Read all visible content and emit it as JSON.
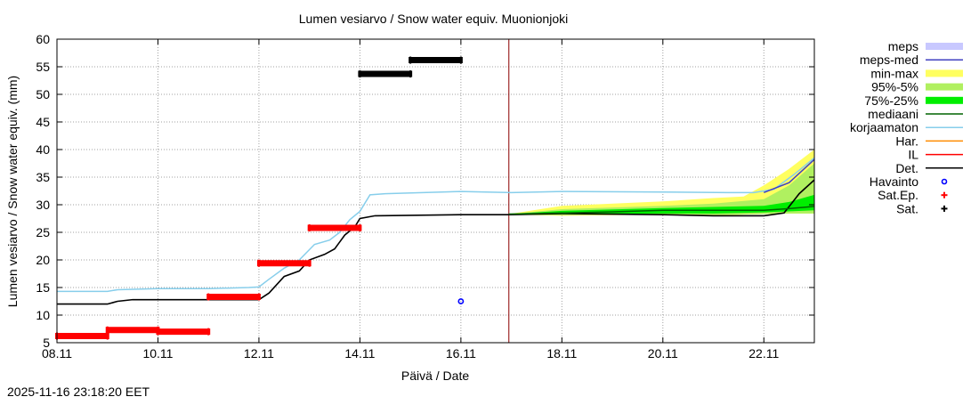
{
  "chart_data": {
    "type": "line",
    "title": "Lumen vesiarvo / Snow water equiv.  Muonionjoki",
    "xlabel": "Päivä / Date",
    "ylabel": "Lumen vesiarvo / Snow water equiv. (mm)",
    "ylim": [
      5,
      60
    ],
    "yticks": [
      5,
      10,
      15,
      20,
      25,
      30,
      35,
      40,
      45,
      50,
      55,
      60
    ],
    "xlim": [
      0,
      15
    ],
    "xticks": [
      {
        "x": 0,
        "label": "08.11"
      },
      {
        "x": 2,
        "label": "10.11"
      },
      {
        "x": 4,
        "label": "12.11"
      },
      {
        "x": 6,
        "label": "14.11"
      },
      {
        "x": 8,
        "label": "16.11"
      },
      {
        "x": 10,
        "label": "18.11"
      },
      {
        "x": 12,
        "label": "20.11"
      },
      {
        "x": 14,
        "label": "22.11"
      }
    ],
    "x_unit": "days since 08.11",
    "grid": true,
    "forecast_start": 8.95,
    "legend_position": "right",
    "legend": [
      {
        "key": "meps",
        "label": "meps",
        "style": "box",
        "color": "#c8c8ff"
      },
      {
        "key": "meps_med",
        "label": "meps-med",
        "style": "line",
        "color": "#4040c0"
      },
      {
        "key": "minmax",
        "label": "min-max",
        "style": "box",
        "color": "#ffff60"
      },
      {
        "key": "p95_5",
        "label": "95%-5%",
        "style": "box",
        "color": "#b0f060"
      },
      {
        "key": "p75_25",
        "label": "75%-25%",
        "style": "box",
        "color": "#00ee00"
      },
      {
        "key": "median",
        "label": "mediaani",
        "style": "line",
        "color": "#006400"
      },
      {
        "key": "uncorrected",
        "label": "korjaamaton",
        "style": "line",
        "color": "#87ceeb"
      },
      {
        "key": "har",
        "label": "Har.",
        "style": "line",
        "color": "#ff8c00"
      },
      {
        "key": "il",
        "label": "IL",
        "style": "line",
        "color": "#ff0000"
      },
      {
        "key": "det",
        "label": "Det.",
        "style": "line",
        "color": "#000000"
      },
      {
        "key": "havainto",
        "label": "Havainto",
        "style": "circle",
        "color": "#0000ff"
      },
      {
        "key": "sat_ep",
        "label": "Sat.Ep.",
        "style": "plus",
        "color": "#ff0000"
      },
      {
        "key": "sat",
        "label": "Sat.",
        "style": "plus",
        "color": "#000000"
      }
    ],
    "series": [
      {
        "name": "korjaamaton",
        "color": "#87ceeb",
        "points": [
          [
            0,
            14.3
          ],
          [
            1,
            14.3
          ],
          [
            1.2,
            14.6
          ],
          [
            2,
            14.8
          ],
          [
            3,
            14.8
          ],
          [
            3.8,
            15.0
          ],
          [
            4,
            15.1
          ],
          [
            4.2,
            16.5
          ],
          [
            4.5,
            18.5
          ],
          [
            4.8,
            20.0
          ],
          [
            5.1,
            22.8
          ],
          [
            5.4,
            23.6
          ],
          [
            5.6,
            25.0
          ],
          [
            5.8,
            27.3
          ],
          [
            6.0,
            28.8
          ],
          [
            6.2,
            31.8
          ],
          [
            6.5,
            32.0
          ],
          [
            8.0,
            32.4
          ],
          [
            9.0,
            32.2
          ],
          [
            10.0,
            32.4
          ],
          [
            12.0,
            32.3
          ],
          [
            13.3,
            32.2
          ],
          [
            13.8,
            32.2
          ],
          [
            14.2,
            32.8
          ],
          [
            14.6,
            35.5
          ],
          [
            15,
            38.5
          ]
        ]
      },
      {
        "name": "Det.",
        "color": "#000000",
        "points": [
          [
            0,
            12.0
          ],
          [
            1,
            12.0
          ],
          [
            1.2,
            12.5
          ],
          [
            1.5,
            12.8
          ],
          [
            3,
            12.8
          ],
          [
            4,
            12.8
          ],
          [
            4.2,
            14.0
          ],
          [
            4.5,
            17.0
          ],
          [
            4.8,
            18.0
          ],
          [
            5.0,
            20.0
          ],
          [
            5.3,
            21.0
          ],
          [
            5.5,
            22.0
          ],
          [
            5.7,
            24.5
          ],
          [
            5.9,
            26.0
          ],
          [
            6.0,
            27.5
          ],
          [
            6.3,
            28.0
          ],
          [
            8.0,
            28.2
          ],
          [
            9.0,
            28.2
          ],
          [
            10.0,
            28.4
          ],
          [
            12.0,
            28.2
          ],
          [
            13.0,
            28.0
          ],
          [
            14.0,
            28.0
          ],
          [
            14.4,
            28.5
          ],
          [
            14.7,
            32.0
          ],
          [
            15,
            34.5
          ]
        ]
      },
      {
        "name": "mediaani",
        "color": "#006400",
        "points": [
          [
            8.95,
            28.3
          ],
          [
            10,
            28.5
          ],
          [
            11,
            28.7
          ],
          [
            12,
            29.0
          ],
          [
            13,
            29.0
          ],
          [
            14,
            29.0
          ],
          [
            14.5,
            29.3
          ],
          [
            15,
            29.7
          ]
        ]
      },
      {
        "name": "meps-med",
        "color": "#4040c0",
        "points": [
          [
            14.0,
            32.2
          ],
          [
            14.5,
            34.0
          ],
          [
            15,
            38.2
          ]
        ]
      }
    ],
    "bands": [
      {
        "name": "meps",
        "color": "#c8c8ff",
        "points": [
          [
            14.0,
            32.2,
            32.2
          ],
          [
            14.5,
            36.5,
            32.4
          ],
          [
            15,
            39.2,
            34.5
          ]
        ]
      },
      {
        "name": "min-max",
        "color": "#ffff60",
        "points": [
          [
            8.95,
            28.3,
            28.2
          ],
          [
            10,
            29.8,
            28.0
          ],
          [
            12,
            30.6,
            28.2
          ],
          [
            13,
            31.2,
            28.0
          ],
          [
            13.6,
            31.5,
            28.2
          ],
          [
            14.0,
            33.5,
            28.3
          ],
          [
            14.5,
            36.5,
            28.4
          ],
          [
            15,
            40.0,
            28.4
          ]
        ]
      },
      {
        "name": "95%-5%",
        "color": "#b0f060",
        "points": [
          [
            8.95,
            28.3,
            28.2
          ],
          [
            10,
            29.2,
            28.1
          ],
          [
            12,
            29.8,
            28.2
          ],
          [
            13,
            30.2,
            28.1
          ],
          [
            14,
            31.0,
            28.3
          ],
          [
            14.5,
            33.5,
            28.4
          ],
          [
            15,
            37.5,
            28.4
          ]
        ]
      },
      {
        "name": "75%-25%",
        "color": "#00ee00",
        "points": [
          [
            8.95,
            28.3,
            28.2
          ],
          [
            10,
            28.9,
            28.3
          ],
          [
            12,
            29.4,
            28.4
          ],
          [
            13,
            29.6,
            28.4
          ],
          [
            14,
            29.8,
            28.6
          ],
          [
            14.5,
            30.5,
            28.8
          ],
          [
            15,
            31.8,
            29.0
          ]
        ]
      }
    ],
    "sat_ep": [
      {
        "x0": 0,
        "x1": 1.0,
        "y": 6.2
      },
      {
        "x0": 1.0,
        "x1": 2.0,
        "y": 7.3
      },
      {
        "x0": 2.0,
        "x1": 3.0,
        "y": 7.0
      },
      {
        "x0": 3.0,
        "x1": 4.0,
        "y": 13.3
      },
      {
        "x0": 4.0,
        "x1": 5.0,
        "y": 19.4
      },
      {
        "x0": 5.0,
        "x1": 6.0,
        "y": 25.8
      }
    ],
    "sat": [
      {
        "x0": 6.0,
        "x1": 7.0,
        "y": 53.7
      },
      {
        "x0": 7.0,
        "x1": 8.0,
        "y": 56.2
      }
    ],
    "havainto": [
      {
        "x": 8.0,
        "y": 12.5
      }
    ]
  },
  "timestamp": "2025-11-16 23:18:20 EET"
}
